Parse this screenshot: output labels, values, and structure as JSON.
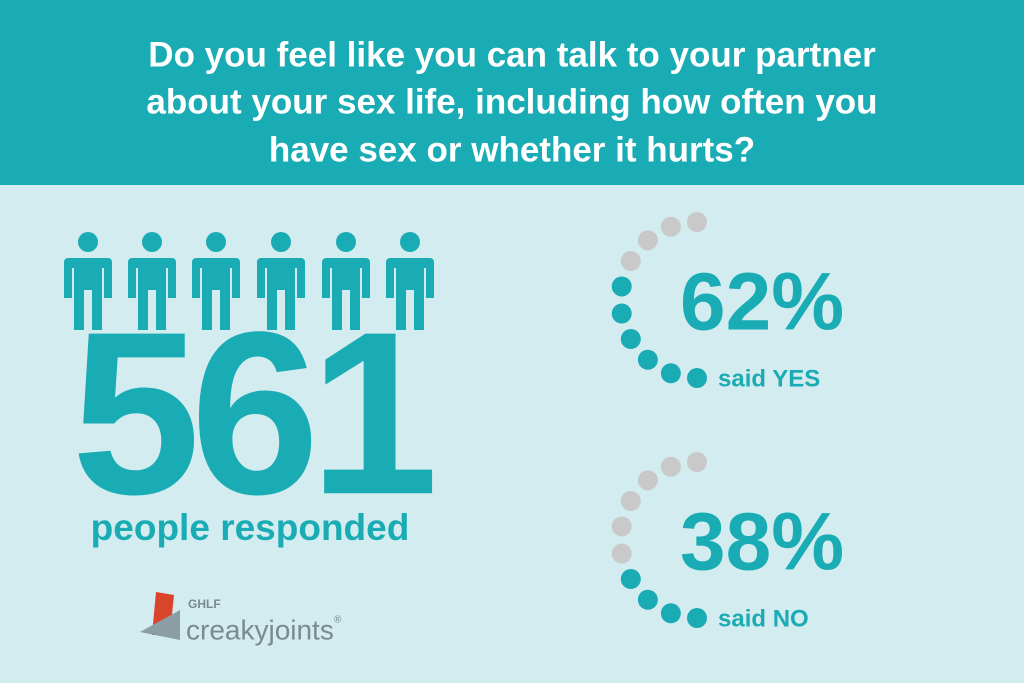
{
  "header": {
    "title_lines": [
      "Do you feel like you can talk to your partner",
      "about your sex life, including how often you",
      "have sex or whether it hurts?"
    ]
  },
  "respondents": {
    "count": "561",
    "label": "people responded"
  },
  "answers": [
    {
      "percent": {
        "value": 62,
        "label": "62%"
      },
      "label": "said YES"
    },
    {
      "percent": {
        "value": 38,
        "label": "38%"
      },
      "label": "said NO"
    }
  ],
  "logo": {
    "org": "GHLF",
    "brand": "creakyjoints",
    "mark": "®"
  }
}
